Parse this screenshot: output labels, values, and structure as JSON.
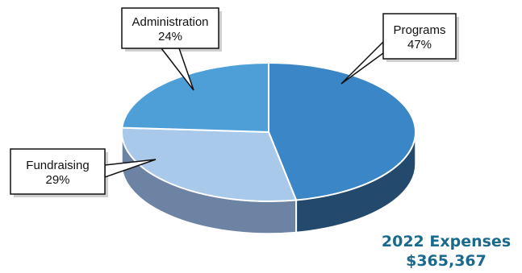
{
  "chart_data": {
    "type": "pie",
    "categories": [
      "Programs",
      "Administration",
      "Fundraising"
    ],
    "values": [
      47,
      24,
      29
    ],
    "labels": [
      "47%",
      "24%",
      "29%"
    ],
    "colors": {
      "Programs": "#3b86c6",
      "Administration": "#4e9fd8",
      "Fundraising": "#a9c9ea"
    },
    "side_colors": {
      "Programs": "#23496c",
      "Administration": "#2d5f86",
      "Fundraising": "#6d83a3"
    },
    "title": "2022 Expenses",
    "subtitle": "$365,367"
  }
}
